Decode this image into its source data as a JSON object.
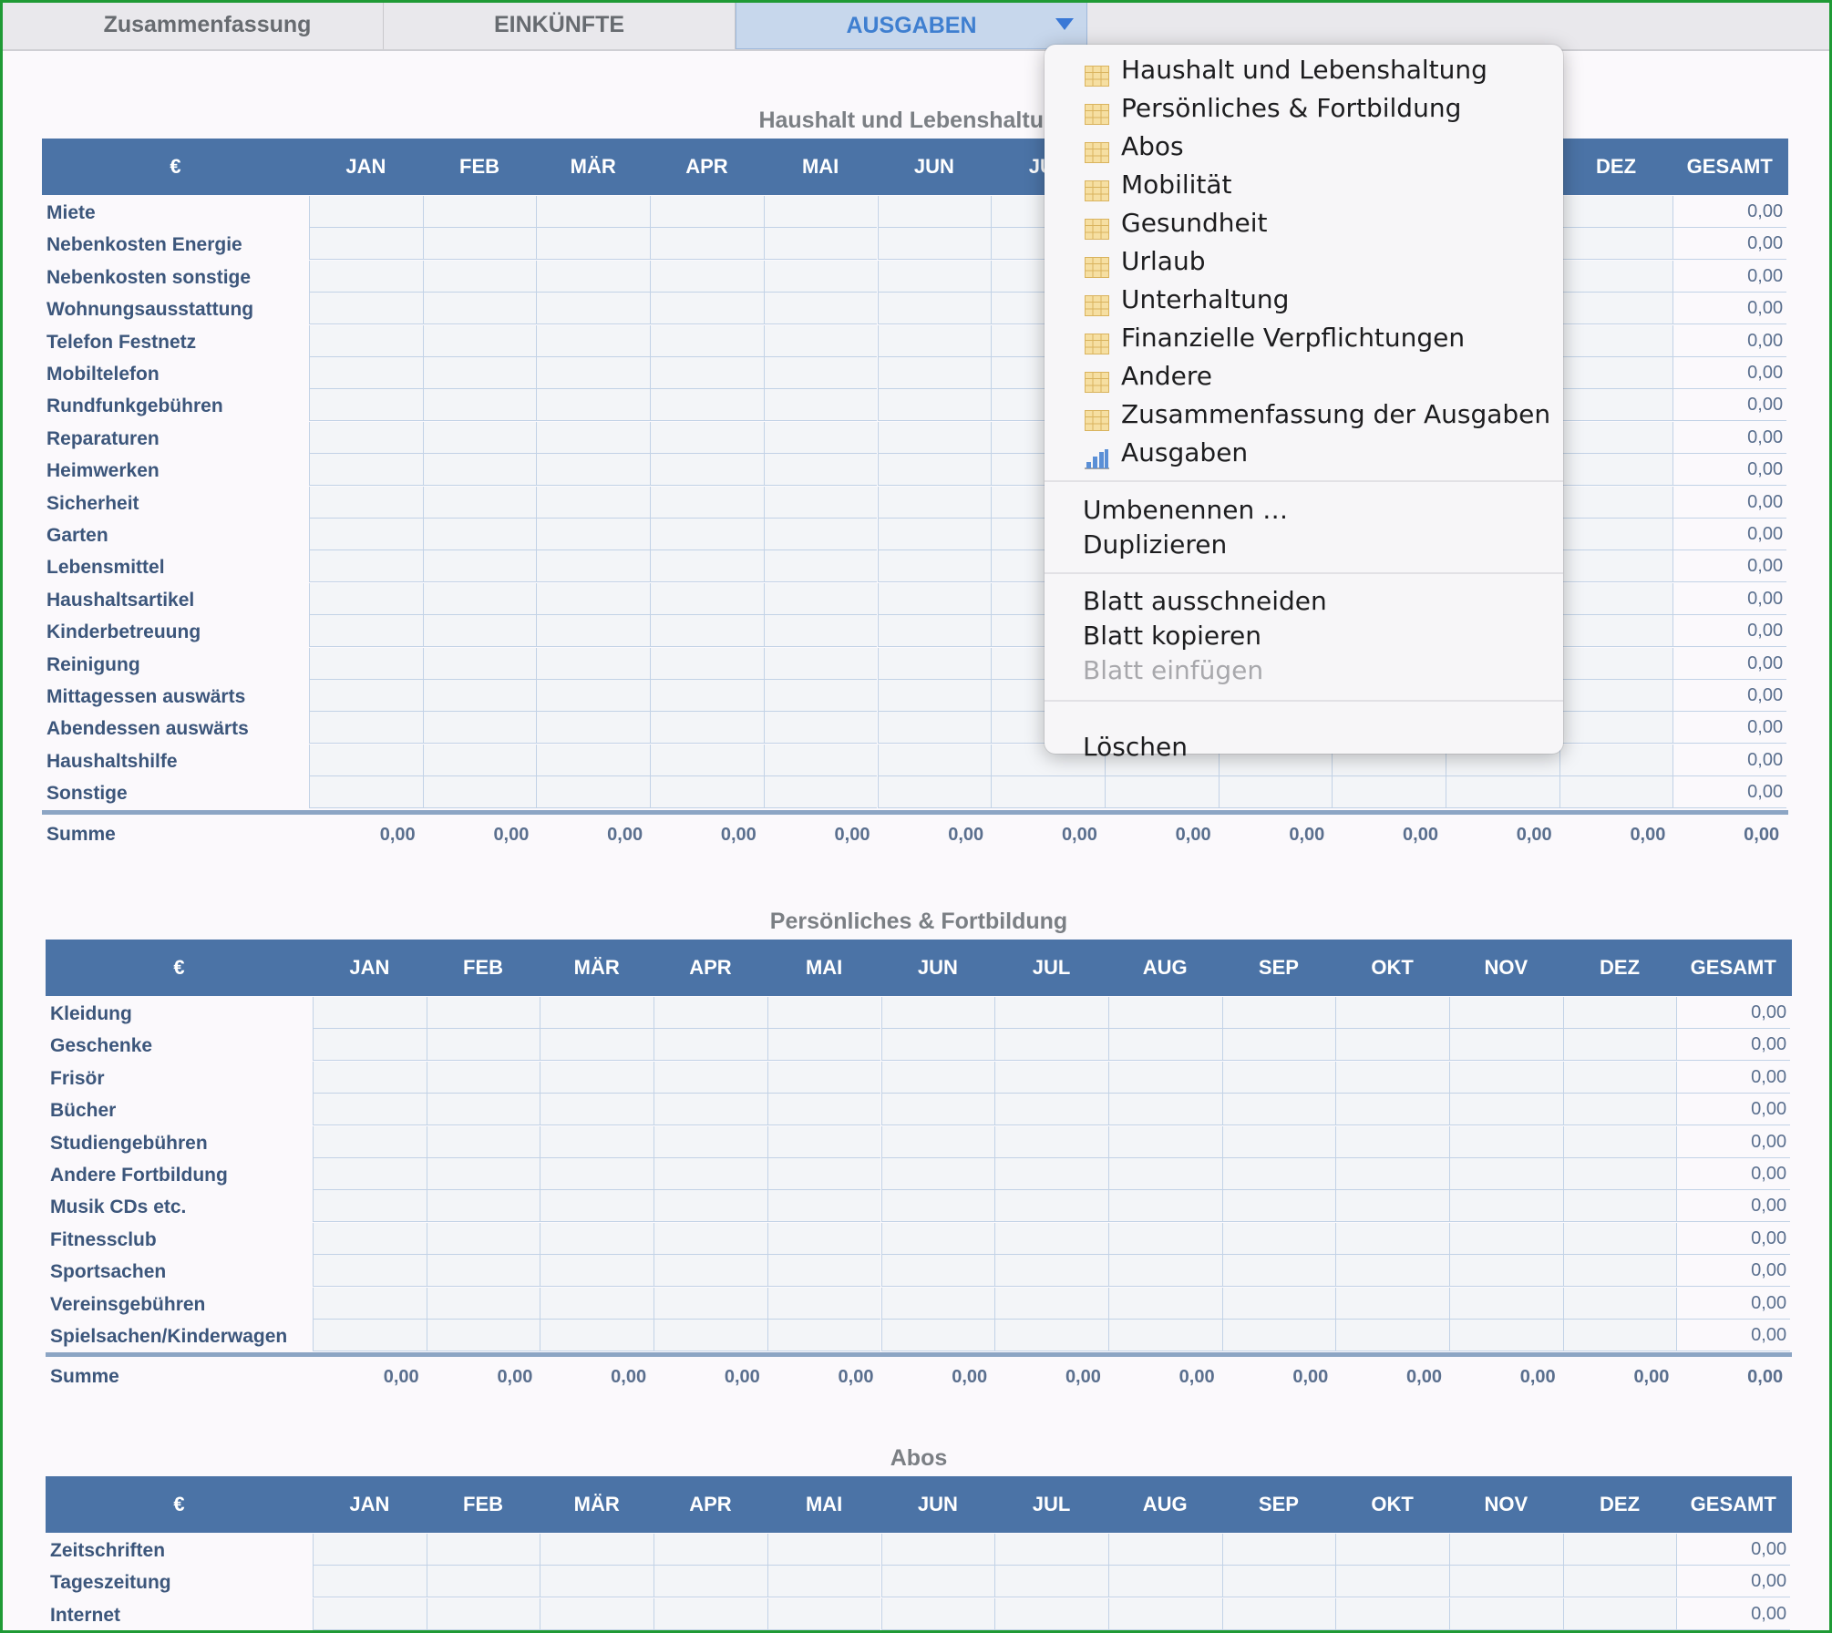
{
  "tabs": [
    {
      "label": "Zusammenfassung",
      "active": false
    },
    {
      "label": "EINKÜNFTE",
      "active": false
    },
    {
      "label": "AUSGABEN",
      "active": true
    }
  ],
  "months_header": [
    "€",
    "JAN",
    "FEB",
    "MÄR",
    "APR",
    "MAI",
    "JUN",
    "JUL",
    "AUG",
    "SEP",
    "OKT",
    "NOV",
    "DEZ",
    "GESAMT"
  ],
  "tables": [
    {
      "title": "Haushalt und Lebenshaltung",
      "rows": [
        "Miete",
        "Nebenkosten Energie",
        "Nebenkosten sonstige",
        "Wohnungsausstattung",
        "Telefon Festnetz",
        "Mobiltelefon",
        "Rundfunkgebühren",
        "Reparaturen",
        "Heimwerken",
        "Sicherheit",
        "Garten",
        "Lebensmittel",
        "Haushaltsartikel",
        "Kinderbetreuung",
        "Reinigung",
        "Mittagessen auswärts",
        "Abendessen auswärts",
        "Haushaltshilfe",
        "Sonstige"
      ],
      "row_total": "0,00",
      "sum_label": "Summe",
      "sum_values": [
        "0,00",
        "0,00",
        "0,00",
        "0,00",
        "0,00",
        "0,00",
        "0,00",
        "0,00",
        "0,00",
        "0,00",
        "0,00",
        "0,00",
        "0,00"
      ]
    },
    {
      "title": "Persönliches & Fortbildung",
      "rows": [
        "Kleidung",
        "Geschenke",
        "Frisör",
        "Bücher",
        "Studiengebühren",
        "Andere Fortbildung",
        "Musik CDs etc.",
        "Fitnessclub",
        "Sportsachen",
        "Vereinsgebühren",
        "Spielsachen/Kinderwagen"
      ],
      "row_total": "0,00",
      "sum_label": "Summe",
      "sum_values": [
        "0,00",
        "0,00",
        "0,00",
        "0,00",
        "0,00",
        "0,00",
        "0,00",
        "0,00",
        "0,00",
        "0,00",
        "0,00",
        "0,00",
        "0,00"
      ]
    },
    {
      "title": "Abos",
      "rows": [
        "Zeitschriften",
        "Tageszeitung",
        "Internet"
      ],
      "row_total": "0,00",
      "sum_label": "",
      "sum_values": []
    }
  ],
  "menu": {
    "sheets": [
      {
        "label": "Haushalt und Lebenshaltung",
        "icon": "table-icon"
      },
      {
        "label": "Persönliches & Fortbildung",
        "icon": "table-icon"
      },
      {
        "label": "Abos",
        "icon": "table-icon"
      },
      {
        "label": "Mobilität",
        "icon": "table-icon"
      },
      {
        "label": "Gesundheit",
        "icon": "table-icon"
      },
      {
        "label": "Urlaub",
        "icon": "table-icon"
      },
      {
        "label": "Unterhaltung",
        "icon": "table-icon"
      },
      {
        "label": "Finanzielle Verpflichtungen",
        "icon": "table-icon"
      },
      {
        "label": "Andere",
        "icon": "table-icon"
      },
      {
        "label": "Zusammenfassung der Ausgaben",
        "icon": "table-icon"
      },
      {
        "label": "Ausgaben",
        "icon": "chart-icon"
      }
    ],
    "actions": [
      {
        "label": "Umbenennen …",
        "enabled": true
      },
      {
        "label": "Duplizieren",
        "enabled": true
      },
      {
        "label": "Blatt ausschneiden",
        "enabled": true
      },
      {
        "label": "Blatt kopieren",
        "enabled": true
      },
      {
        "label": "Blatt einfügen",
        "enabled": false
      },
      {
        "label": "Löschen",
        "enabled": true
      }
    ]
  },
  "colors": {
    "header_blue": "#4b73a6",
    "active_tab": "#c7d7ec",
    "frame_green": "#1f9a35"
  }
}
